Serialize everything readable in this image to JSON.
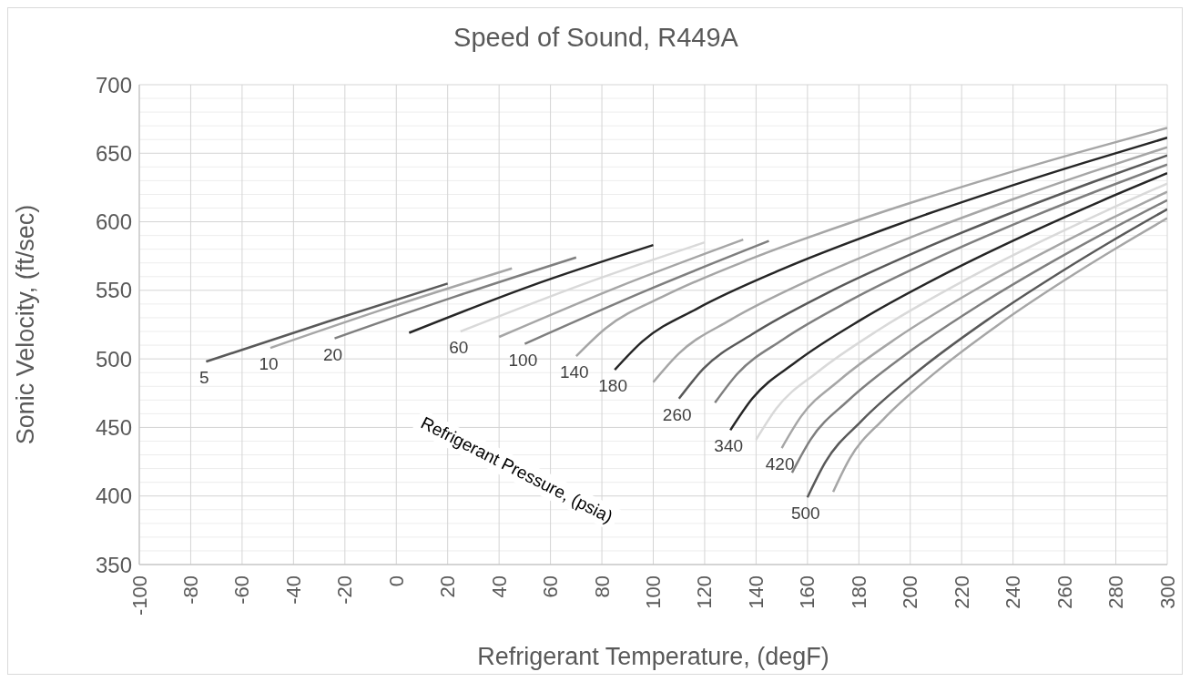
{
  "chart_data": {
    "type": "line",
    "title": "Speed of Sound, R449A",
    "xlabel": "Refrigerant Temperature, (degF)",
    "ylabel": "Sonic Velocity, (ft/sec)",
    "annotations": [
      "Refrigerant Pressure, (psia)"
    ],
    "xlim": [
      -100,
      300
    ],
    "xticks": [
      -100,
      -80,
      -60,
      -40,
      -20,
      0,
      20,
      40,
      60,
      80,
      100,
      120,
      140,
      160,
      180,
      200,
      220,
      240,
      260,
      280,
      300
    ],
    "ylim": [
      350,
      700
    ],
    "yticks": [
      350,
      400,
      450,
      500,
      550,
      600,
      650,
      700
    ],
    "grid": true,
    "marker": "none",
    "series": [
      {
        "name": "5",
        "color": "#595959",
        "x": [
          -74,
          -27,
          20
        ],
        "values": [
          498,
          527,
          555
        ]
      },
      {
        "name": "10",
        "color": "#a6a6a6",
        "x": [
          -49,
          -2,
          45
        ],
        "values": [
          508,
          538,
          566
        ]
      },
      {
        "name": "20",
        "color": "#7f7f7f",
        "x": [
          -24,
          23,
          70
        ],
        "values": [
          515,
          545.5,
          574
        ]
      },
      {
        "color": "#262626",
        "x": [
          5,
          52,
          100
        ],
        "values": [
          519,
          553,
          583
        ]
      },
      {
        "name": "60",
        "color": "#d9d9d9",
        "x": [
          25,
          72,
          120
        ],
        "values": [
          520,
          554,
          585
        ]
      },
      {
        "color": "#a6a6a6",
        "x": [
          40,
          87,
          135
        ],
        "values": [
          516,
          553,
          587
        ]
      },
      {
        "name": "100",
        "color": "#7f7f7f",
        "x": [
          50,
          97.5,
          145
        ],
        "values": [
          511,
          550,
          586
        ]
      },
      {
        "name": "140",
        "color": "#a6a6a6",
        "x": [
          70,
          81.5,
          104.5,
          139,
          185,
          231,
          265.5,
          300
        ],
        "values": [
          502,
          522.4,
          546.1,
          573.7,
          604.5,
          631.7,
          650.6,
          668.5
        ]
      },
      {
        "name": "180",
        "color": "#262626",
        "x": [
          85,
          95.8,
          117.3,
          149.5,
          192.5,
          235.5,
          267.8,
          300
        ],
        "values": [
          492,
          512.8,
          536.9,
          564.9,
          596.2,
          623.9,
          643.1,
          661.3
        ]
      },
      {
        "color": "#a6a6a6",
        "x": [
          100,
          110,
          130,
          160,
          200,
          240,
          270,
          300
        ],
        "values": [
          483,
          504,
          528.4,
          556.8,
          588.5,
          616.5,
          636,
          654.4
        ]
      },
      {
        "name": "260",
        "color": "#595959",
        "x": [
          110,
          119.5,
          138.5,
          167,
          205,
          243,
          271.5,
          300
        ],
        "values": [
          471,
          492.8,
          518,
          547.4,
          580.2,
          609.2,
          629.3,
          648.4
        ]
      },
      {
        "color": "#7f7f7f",
        "x": [
          124,
          132.8,
          150.4,
          176.8,
          212,
          247.2,
          273.6,
          300
        ],
        "values": [
          468,
          489.3,
          514.1,
          542.8,
          575,
          603.4,
          623.1,
          641.8
        ]
      },
      {
        "name": "340",
        "color": "#262626",
        "x": [
          130,
          138.5,
          155.5,
          181,
          215,
          249,
          274.5,
          300
        ],
        "values": [
          448,
          471,
          497.7,
          528.7,
          563.4,
          594,
          615.3,
          635.4
        ]
      },
      {
        "color": "#d9d9d9",
        "x": [
          140,
          148,
          164,
          188,
          220,
          252,
          276,
          300
        ],
        "values": [
          441,
          464,
          490.5,
          521.5,
          556.1,
          586.6,
          607.8,
          627.9
        ]
      },
      {
        "name": "420",
        "color": "#a6a6a6",
        "x": [
          150,
          157.5,
          172.5,
          195,
          225,
          255,
          277.5,
          300
        ],
        "values": [
          435,
          458,
          484.5,
          515.5,
          550.1,
          580.6,
          601.8,
          621.9
        ]
      },
      {
        "color": "#7f7f7f",
        "x": [
          154,
          161.3,
          175.9,
          197.8,
          227,
          256.2,
          278.1,
          300
        ],
        "values": [
          417,
          441.4,
          469.7,
          502.6,
          539.4,
          571.9,
          594.4,
          615.8
        ]
      },
      {
        "name": "500",
        "color": "#595959",
        "x": [
          160,
          167,
          181,
          202,
          230,
          258,
          279,
          300
        ],
        "values": [
          399,
          424.8,
          454.7,
          489.5,
          528.4,
          562.7,
          586.6,
          609.2
        ]
      },
      {
        "color": "#a6a6a6",
        "x": [
          170,
          176.5,
          189.5,
          209,
          235,
          261,
          280.5,
          300
        ],
        "values": [
          403,
          427.5,
          455.9,
          488.9,
          525.9,
          558.5,
          581.1,
          602.6
        ]
      }
    ]
  }
}
